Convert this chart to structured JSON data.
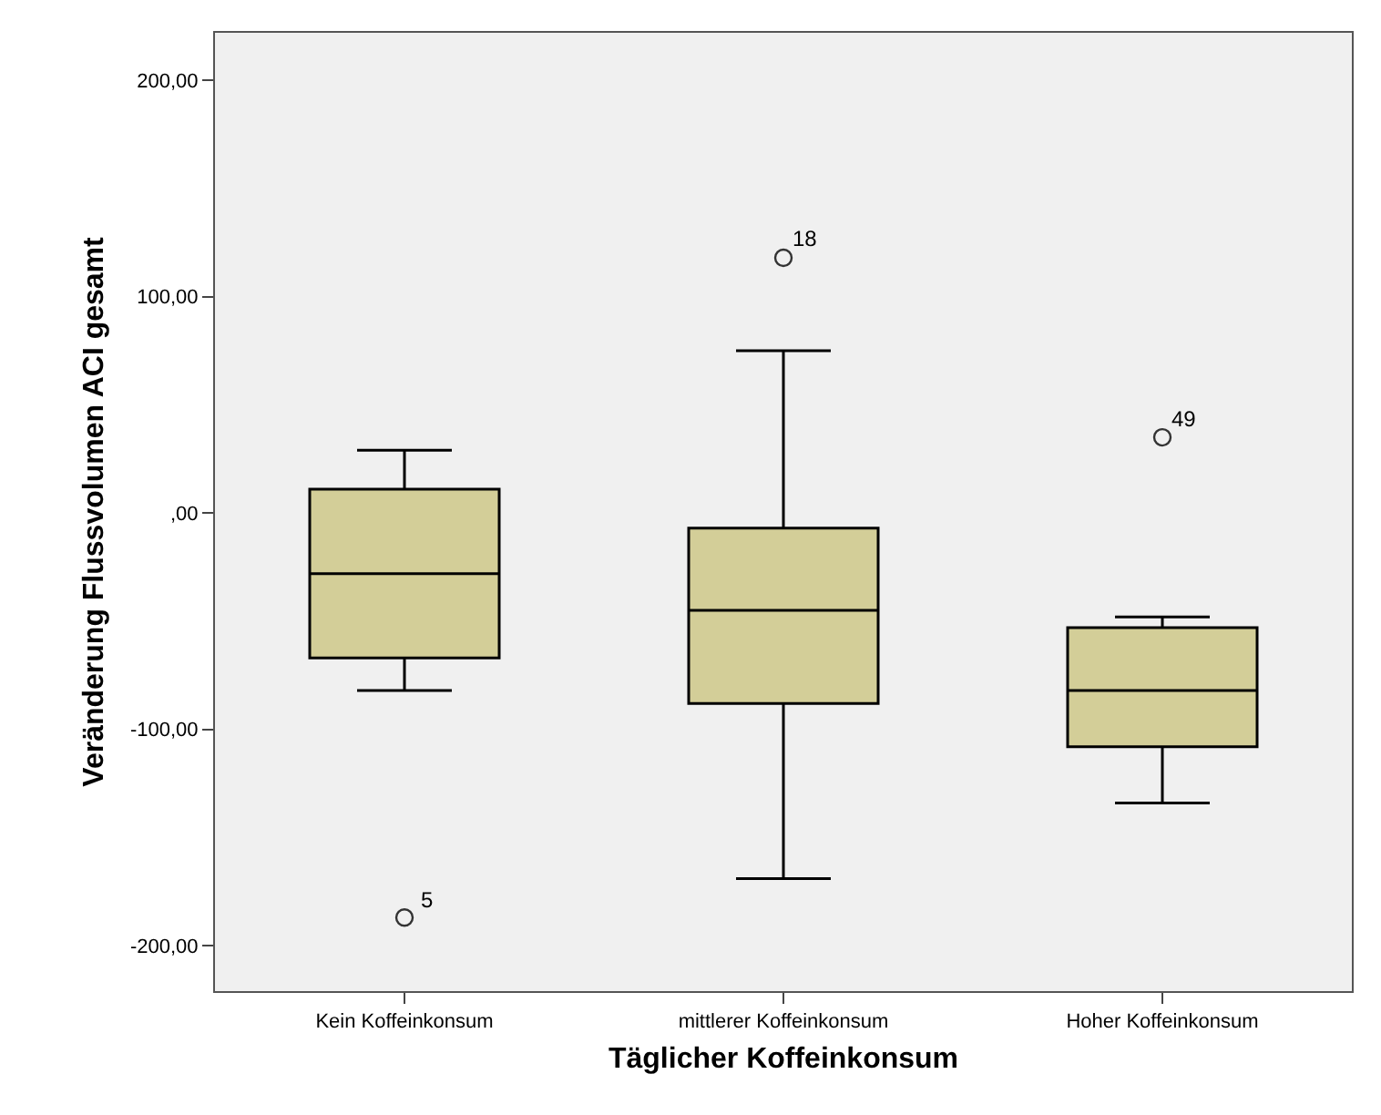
{
  "chart_data": {
    "type": "box",
    "xlabel": "Täglicher Koffeinkonsum",
    "ylabel": "Veränderung Flussvolumen ACI gesamt",
    "categories": [
      "Kein Koffeinkonsum",
      "mittlerer Koffeinkonsum",
      "Hoher Koffeinkonsum"
    ],
    "color": "#d3ce98",
    "boxes": [
      {
        "low": -82,
        "q1": -67,
        "median": -28,
        "q3": 11,
        "high": 29,
        "outliers": [
          -187
        ]
      },
      {
        "low": -169,
        "q1": -88,
        "median": -45,
        "q3": -7,
        "high": 75,
        "outliers": [
          118
        ]
      },
      {
        "low": -134,
        "q1": -108,
        "median": -82,
        "q3": -53,
        "high": -48,
        "outliers": [
          35
        ]
      }
    ],
    "ylim": [
      -221,
      222
    ],
    "yticks": [
      {
        "value": -200,
        "label": "-200,00"
      },
      {
        "value": -100,
        "label": "-100,00"
      },
      {
        "value": 0,
        "label": ",00"
      },
      {
        "value": 100,
        "label": "100,00"
      },
      {
        "value": 200,
        "label": "200,00"
      }
    ],
    "annotations": [
      "5",
      "18",
      "49"
    ],
    "grid": false,
    "marker": "circle"
  }
}
